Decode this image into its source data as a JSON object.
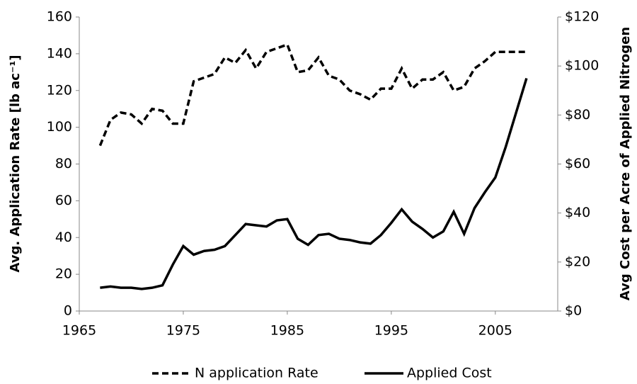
{
  "chart_data": {
    "type": "line",
    "x": [
      1967,
      1968,
      1969,
      1970,
      1971,
      1972,
      1973,
      1974,
      1975,
      1976,
      1977,
      1978,
      1979,
      1980,
      1981,
      1982,
      1983,
      1984,
      1985,
      1986,
      1987,
      1988,
      1989,
      1990,
      1991,
      1992,
      1993,
      1994,
      1995,
      1996,
      1997,
      1998,
      1999,
      2000,
      2001,
      2002,
      2003,
      2004,
      2005,
      2006,
      2007,
      2008
    ],
    "series": [
      {
        "name": "N application Rate",
        "color": "#000000",
        "dash": true,
        "values": [
          90,
          104,
          108,
          107,
          102,
          110,
          109,
          102,
          102,
          125,
          127,
          129,
          138,
          135,
          142,
          132,
          141,
          143,
          145,
          130,
          131,
          138,
          128,
          126,
          120,
          118,
          115,
          121,
          121,
          132,
          121,
          126,
          126,
          130,
          120,
          122,
          132,
          136,
          141,
          141,
          141,
          141
        ]
      },
      {
        "name": "Applied Cost",
        "color": "#000000",
        "dash": false,
        "axis": "y2",
        "values": [
          9.5,
          10,
          9.5,
          9.5,
          9,
          9.5,
          10.5,
          19,
          26.5,
          23,
          24.5,
          25,
          26.5,
          31,
          35.5,
          35,
          34.5,
          37,
          37.5,
          29.5,
          27,
          31,
          31.5,
          29.5,
          29,
          28,
          27.5,
          31,
          36,
          41.5,
          36.5,
          33.5,
          30,
          32.5,
          40.5,
          31.5,
          42,
          48.5,
          54.5,
          67,
          81,
          95
        ]
      }
    ],
    "y_label": "Avg. Application Rate [lb ac⁻¹]",
    "y2_label": "Avg Cost per Acre of Applied Nitrogen",
    "xlim": [
      1965,
      2011
    ],
    "xticks": [
      1965,
      1975,
      1985,
      1995,
      2005
    ],
    "ylim": [
      0,
      160
    ],
    "yticks": [
      0,
      20,
      40,
      60,
      80,
      100,
      120,
      140,
      160
    ],
    "y2lim": [
      0,
      120
    ],
    "y2ticks": [
      {
        "value": 0,
        "label": "$0"
      },
      {
        "value": 20,
        "label": "$20"
      },
      {
        "value": 40,
        "label": "$40"
      },
      {
        "value": 60,
        "label": "$60"
      },
      {
        "value": 80,
        "label": "$80"
      },
      {
        "value": 100,
        "label": "$100"
      },
      {
        "value": 120,
        "label": "$120"
      }
    ],
    "grid": false,
    "legend": "bottom"
  }
}
